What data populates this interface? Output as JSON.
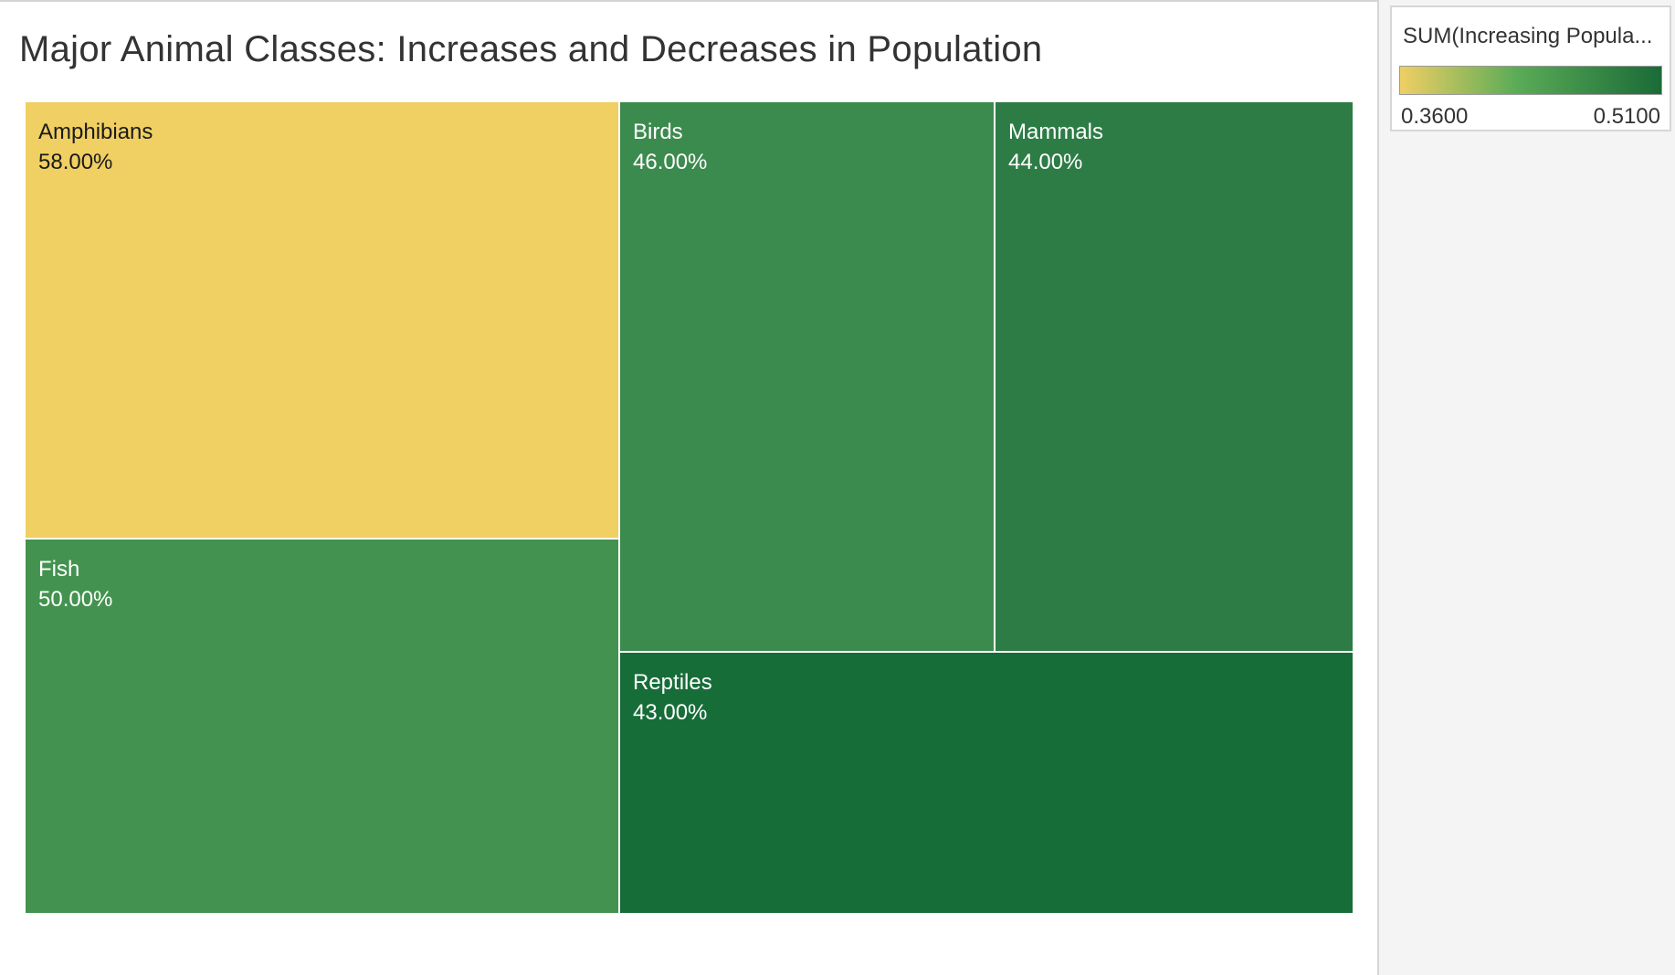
{
  "chart_data": {
    "type": "treemap",
    "title": "Major Animal Classes: Increases and Decreases in Population",
    "measure": "SUM(Increasing Popula...",
    "items": [
      {
        "label": "Amphibians",
        "value_label": "58.00%",
        "value": 0.58,
        "color_value": 0.36,
        "color": "#f0cf63"
      },
      {
        "label": "Fish",
        "value_label": "50.00%",
        "value": 0.5,
        "color_value": 0.44,
        "color": "#44924f"
      },
      {
        "label": "Birds",
        "value_label": "46.00%",
        "value": 0.46,
        "color_value": 0.45,
        "color": "#3c8b4e"
      },
      {
        "label": "Mammals",
        "value_label": "44.00%",
        "value": 0.44,
        "color_value": 0.48,
        "color": "#2d7c46"
      },
      {
        "label": "Reptiles",
        "value_label": "43.00%",
        "value": 0.43,
        "color_value": 0.51,
        "color": "#176d38"
      }
    ],
    "color_legend": {
      "title": "SUM(Increasing Popula...",
      "min_label": "0.3600",
      "max_label": "0.5100",
      "min": 0.36,
      "max": 0.51,
      "gradient": [
        "#f0cf63",
        "#5aab57",
        "#1a6b37"
      ]
    }
  },
  "colors": {
    "light_text": "#ffffff",
    "dark_text": "#1a1a1a",
    "tile_border": "#ffffff"
  }
}
